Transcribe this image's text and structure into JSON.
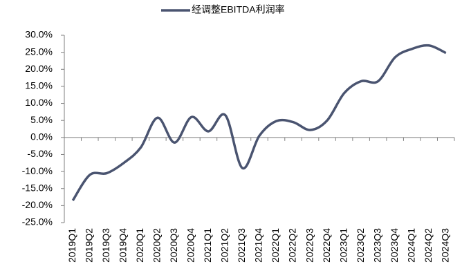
{
  "chart_data": {
    "type": "line",
    "categories": [
      "2019Q1",
      "2019Q2",
      "2019Q3",
      "2019Q4",
      "2020Q1",
      "2020Q2",
      "2020Q3",
      "2020Q4",
      "2021Q1",
      "2021Q2",
      "2021Q3",
      "2021Q4",
      "2022Q1",
      "2022Q2",
      "2022Q3",
      "2022Q4",
      "2023Q1",
      "2023Q2",
      "2023Q3",
      "2023Q4",
      "2024Q1",
      "2024Q2",
      "2024Q3"
    ],
    "series": [
      {
        "name": "经调整EBITDA利润率",
        "color": "#4a5470",
        "values": [
          -18.5,
          -11,
          -10.5,
          -7.5,
          -3,
          5.8,
          -1.5,
          6,
          1.8,
          6.5,
          -9,
          0.5,
          4.8,
          4.5,
          2.2,
          5,
          13,
          16.5,
          16.5,
          23.5,
          26,
          27,
          24.8
        ]
      }
    ],
    "ylim": [
      -25,
      30
    ],
    "yticks": [
      {
        "value": -25,
        "label": "-25.0%"
      },
      {
        "value": -20,
        "label": "-20.0%"
      },
      {
        "value": -15,
        "label": "-15.0%"
      },
      {
        "value": -10,
        "label": "-10.0%"
      },
      {
        "value": -5,
        "label": "-5.0%"
      },
      {
        "value": 0,
        "label": "0.0%"
      },
      {
        "value": 5,
        "label": "5.0%"
      },
      {
        "value": 10,
        "label": "10.0%"
      },
      {
        "value": 15,
        "label": "15.0%"
      },
      {
        "value": 20,
        "label": "20.0%"
      },
      {
        "value": 25,
        "label": "25.0%"
      },
      {
        "value": 30,
        "label": "30.0%"
      }
    ],
    "legend": "top"
  }
}
